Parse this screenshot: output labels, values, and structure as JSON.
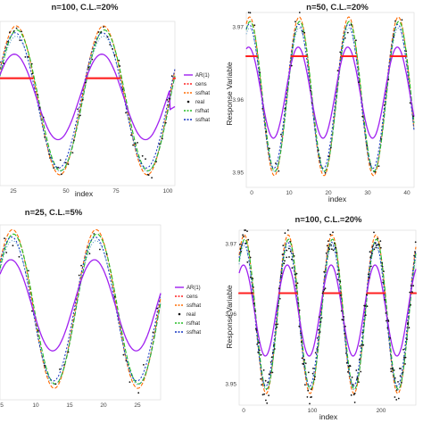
{
  "chart_data": [
    {
      "type": "line",
      "title": "n=100, C.L.=20%",
      "xlabel": "index",
      "ylabel": "",
      "xlim": [
        1,
        101
      ],
      "ylim": [
        3.946,
        3.972
      ],
      "xticks": [
        "25",
        "50",
        "75",
        "100"
      ],
      "yticks": [],
      "period": 50,
      "censor_level": 3.963,
      "ar1_end_spike": 3.958,
      "legend": [
        "AR(1)",
        "cens",
        "ssfhat",
        "real",
        "rsfhat",
        "ssfhat"
      ],
      "colors": {
        "ar1": "#a020f0",
        "cens": "#ff2020",
        "rs": "#ff6a00",
        "real": "#111111",
        "green": "#22bb22",
        "blue": "#1030c0"
      }
    },
    {
      "type": "line",
      "title": "n=50, C.L.=20%",
      "xlabel": "index",
      "ylabel": "Response Variable",
      "xlim": [
        0,
        44
      ],
      "ylim": [
        3.948,
        3.972
      ],
      "xticks": [
        "0",
        "10",
        "20",
        "30",
        "40"
      ],
      "yticks": [
        "3.95",
        "3.96",
        "3.97"
      ],
      "period": 13,
      "censor_level": 3.966,
      "legend": [],
      "colors": {
        "ar1": "#a020f0",
        "cens": "#ff2020",
        "rs": "#ff6a00",
        "real": "#111111",
        "green": "#22bb22",
        "blue": "#1030c0"
      }
    },
    {
      "type": "line",
      "title": "n=25, C.L.=5%",
      "xlabel": "",
      "ylabel": "",
      "xlim": [
        1,
        26
      ],
      "ylim": [
        3.946,
        3.972
      ],
      "xticks": [
        "5",
        "10",
        "15",
        "20",
        "25"
      ],
      "yticks": [],
      "period": 13,
      "censor_level": null,
      "legend": [
        "AR(1)",
        "cens",
        "ssfhat",
        "real",
        "rsfhat",
        "ssfhat"
      ],
      "colors": {
        "ar1": "#a020f0",
        "cens": "#ff2020",
        "rs": "#ff6a00",
        "real": "#111111",
        "green": "#22bb22",
        "blue": "#1030c0"
      }
    },
    {
      "type": "line",
      "title": "n=100, C.L.=20%",
      "xlabel": "index",
      "ylabel": "Response Variable",
      "xlim": [
        0,
        290
      ],
      "ylim": [
        3.947,
        3.972
      ],
      "xticks": [
        "0",
        "100",
        "200"
      ],
      "yticks": [
        "3.95",
        "3.96",
        "3.97"
      ],
      "period": 72,
      "censor_level": 3.963,
      "legend": [],
      "colors": {
        "ar1": "#a020f0",
        "cens": "#ff2020",
        "rs": "#ff6a00",
        "real": "#111111",
        "green": "#22bb22",
        "blue": "#1030c0"
      }
    }
  ]
}
